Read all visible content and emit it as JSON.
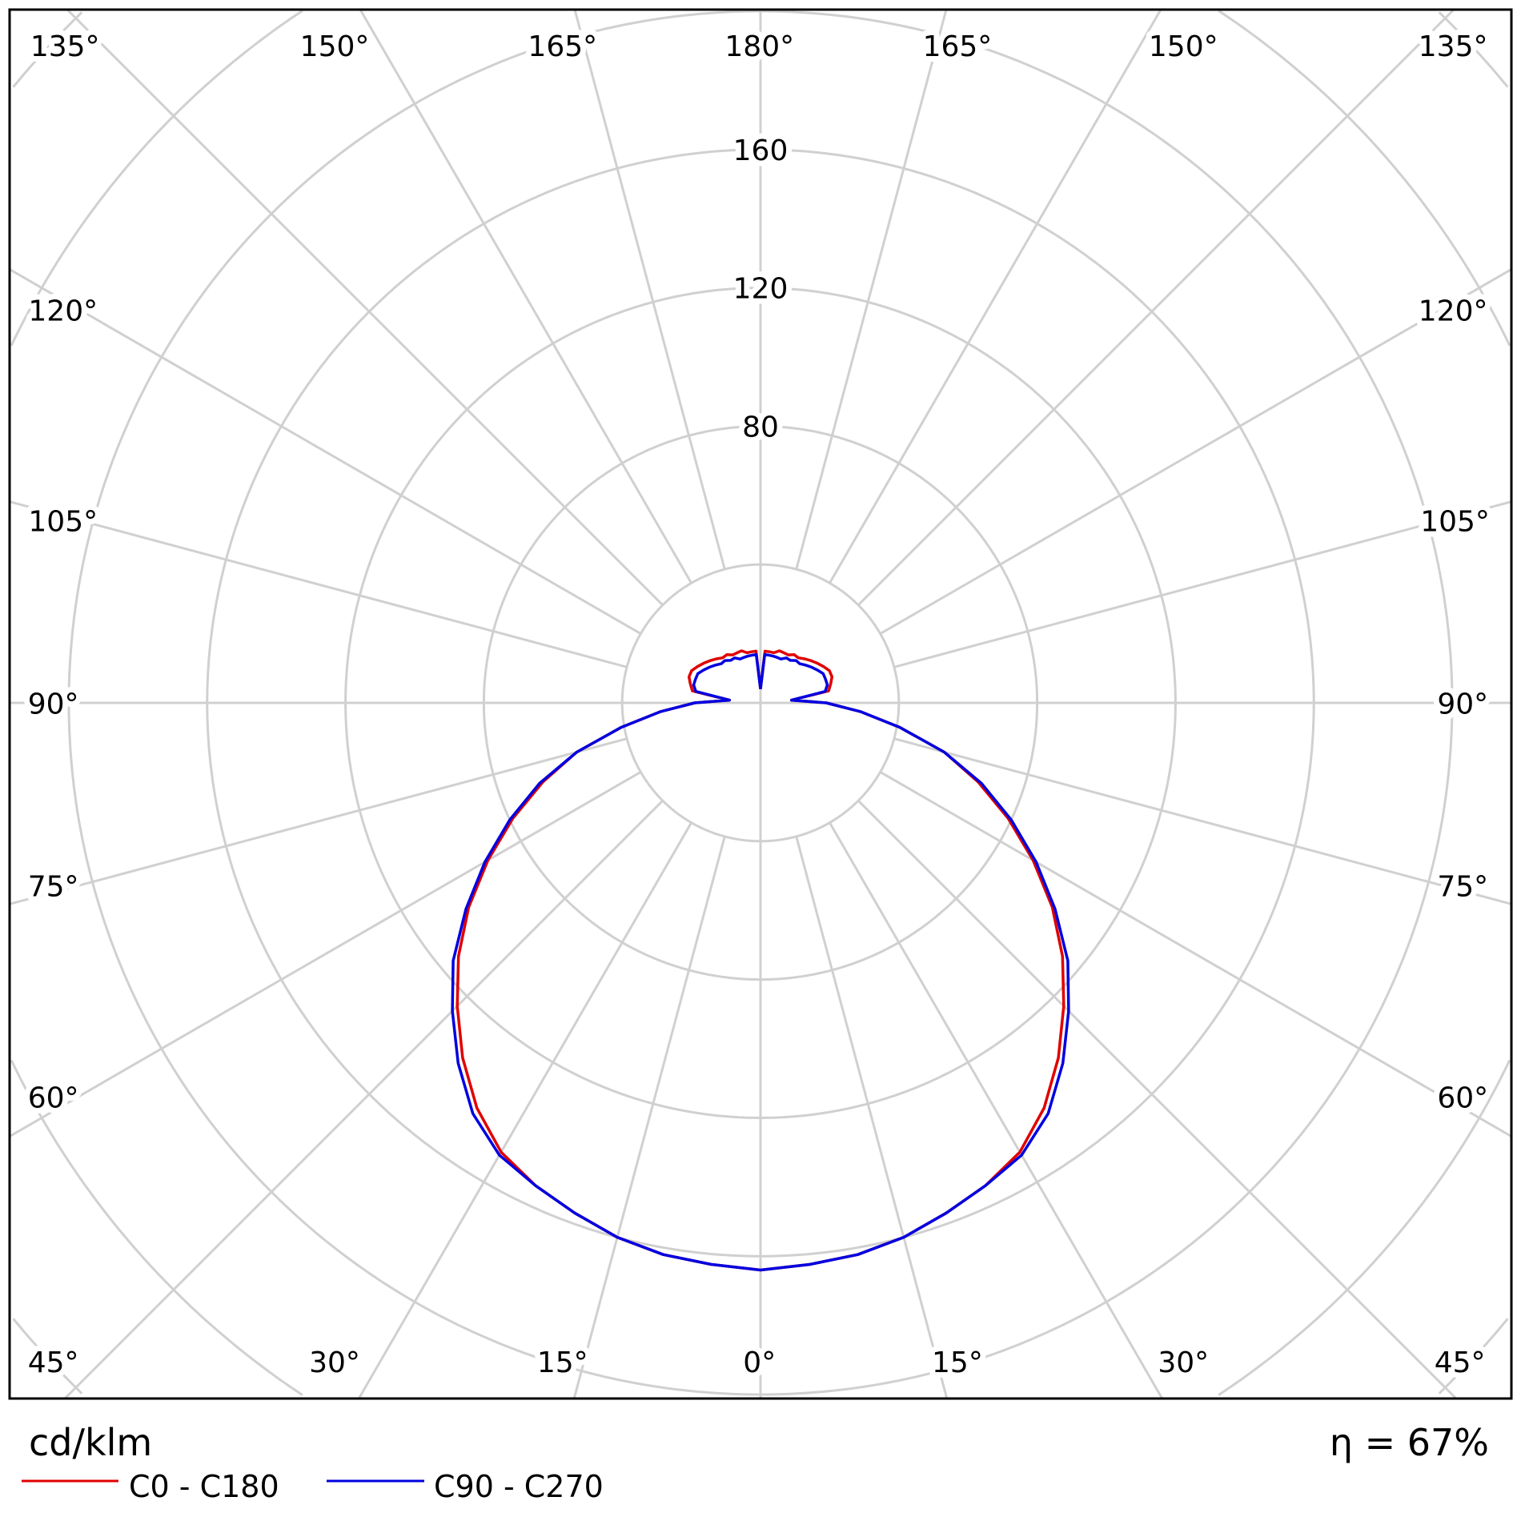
{
  "chart_data": {
    "type": "polar",
    "unit_label": "cd/klm",
    "efficiency_label": "η = 67%",
    "radial_ticks": [
      40,
      80,
      120,
      160,
      200,
      240,
      280
    ],
    "radial_tick_labels": [
      "80",
      "120",
      "160"
    ],
    "angle_step_deg": 15,
    "angle_labels": {
      "top": [
        "135°",
        "150°",
        "165°",
        "180°",
        "165°",
        "150°",
        "135°"
      ],
      "left": [
        "120°",
        "105°",
        "90°",
        "75°",
        "60°",
        "45°"
      ],
      "right": [
        "120°",
        "105°",
        "90°",
        "75°",
        "60°",
        "45°"
      ],
      "bottom": [
        "30°",
        "15°",
        "0°",
        "15°",
        "30°"
      ]
    },
    "grid": true,
    "legend_position": "bottom-left",
    "gamma": [
      0,
      5,
      10,
      15,
      20,
      25,
      30,
      35,
      40,
      45,
      50,
      55,
      60,
      65,
      70,
      75,
      80,
      85,
      90,
      95,
      100,
      105,
      110,
      115,
      120,
      125,
      130,
      135,
      140,
      145,
      150,
      155,
      160,
      165,
      170,
      175,
      180
    ],
    "series": [
      {
        "name": "C0 - C180",
        "color": "#e00000",
        "values": [
          164,
          163,
          162,
          160,
          157,
          154,
          150,
          143,
          134,
          124,
          114,
          103,
          91,
          79,
          67,
          55,
          41,
          29,
          19,
          9,
          20,
          21,
          22,
          22,
          21,
          20,
          19,
          18,
          17,
          17,
          16,
          16,
          16,
          15,
          15,
          15,
          4
        ]
      },
      {
        "name": "C90 - C270",
        "color": "#0000e0",
        "values": [
          164,
          163,
          162,
          160,
          157,
          154,
          151,
          145,
          136,
          126,
          116,
          104,
          92,
          80,
          68,
          55,
          41,
          29,
          19,
          9,
          19,
          20,
          20,
          20,
          19,
          18,
          17,
          16,
          16,
          15,
          15,
          14,
          14,
          14,
          14,
          14,
          4
        ]
      }
    ]
  }
}
